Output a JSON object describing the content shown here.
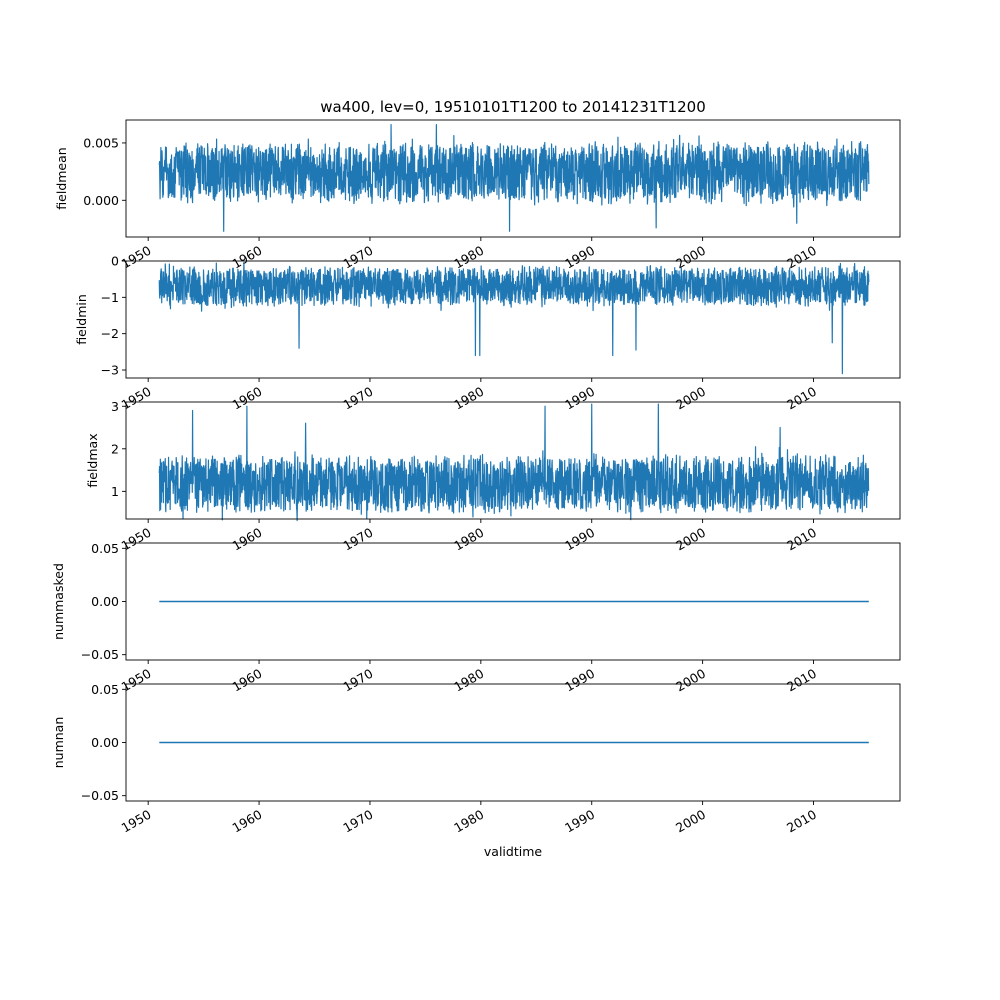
{
  "chart_data": [
    {
      "type": "line",
      "title": "wa400, lev=0, 19510101T1200 to 20141231T1200",
      "xlabel": "",
      "ylabel": "fieldmean",
      "xlim": [
        1948.0,
        2017.8
      ],
      "ylim": [
        -0.0032,
        0.007
      ],
      "x_ticks": [
        1950,
        1960,
        1970,
        1980,
        1990,
        2000,
        2010
      ],
      "x_tick_labels": [
        "1950",
        "1960",
        "1970",
        "1980",
        "1990",
        "2000",
        "2010"
      ],
      "y_ticks": [
        0.0,
        0.005
      ],
      "y_tick_labels": [
        "0.000",
        "0.005"
      ],
      "grid": false,
      "color": "#1f77b4",
      "series": [
        {
          "x_range": [
            1951.0,
            2014.99
          ],
          "typical_low": 0.0,
          "typical_high": 0.0048,
          "extreme_points": [
            {
              "x": 1956.8,
              "y": -0.0027
            },
            {
              "x": 1971.9,
              "y": 0.0066
            },
            {
              "x": 1976.0,
              "y": 0.0066
            },
            {
              "x": 1982.6,
              "y": -0.0027
            },
            {
              "x": 1995.8,
              "y": -0.0024
            },
            {
              "x": 2008.5,
              "y": -0.002
            }
          ]
        }
      ]
    },
    {
      "type": "line",
      "xlabel": "",
      "ylabel": "fieldmin",
      "xlim": [
        1948.0,
        2017.8
      ],
      "ylim": [
        -3.22,
        0.0
      ],
      "x_ticks": [
        1950,
        1960,
        1970,
        1980,
        1990,
        2000,
        2010
      ],
      "x_tick_labels": [
        "1950",
        "1960",
        "1970",
        "1980",
        "1990",
        "2000",
        "2010"
      ],
      "y_ticks": [
        -3,
        -2,
        -1,
        0
      ],
      "y_tick_labels": [
        "−3",
        "−2",
        "−1",
        "0"
      ],
      "grid": false,
      "color": "#1f77b4",
      "series": [
        {
          "x_range": [
            1951.0,
            2014.99
          ],
          "typical_low": -1.2,
          "typical_high": -0.2,
          "extreme_points": [
            {
              "x": 1963.6,
              "y": -2.4
            },
            {
              "x": 1979.5,
              "y": -2.6
            },
            {
              "x": 1979.9,
              "y": -2.6
            },
            {
              "x": 1991.9,
              "y": -2.6
            },
            {
              "x": 1994.0,
              "y": -2.45
            },
            {
              "x": 2011.7,
              "y": -2.25
            },
            {
              "x": 2012.6,
              "y": -3.1
            }
          ]
        }
      ]
    },
    {
      "type": "line",
      "xlabel": "",
      "ylabel": "fieldmax",
      "xlim": [
        1948.0,
        2017.8
      ],
      "ylim": [
        0.35,
        3.1
      ],
      "x_ticks": [
        1950,
        1960,
        1970,
        1980,
        1990,
        2000,
        2010
      ],
      "x_tick_labels": [
        "1950",
        "1960",
        "1970",
        "1980",
        "1990",
        "2000",
        "2010"
      ],
      "y_ticks": [
        1,
        2,
        3
      ],
      "y_tick_labels": [
        "1",
        "2",
        "3"
      ],
      "grid": false,
      "color": "#1f77b4",
      "series": [
        {
          "x_range": [
            1951.0,
            2014.99
          ],
          "typical_low": 0.55,
          "typical_high": 1.8,
          "extreme_points": [
            {
              "x": 1954.0,
              "y": 2.9
            },
            {
              "x": 1958.9,
              "y": 3.0
            },
            {
              "x": 1964.2,
              "y": 2.6
            },
            {
              "x": 1985.8,
              "y": 3.0
            },
            {
              "x": 1990.0,
              "y": 3.05
            },
            {
              "x": 1996.0,
              "y": 3.05
            },
            {
              "x": 2007.0,
              "y": 2.5
            }
          ]
        }
      ]
    },
    {
      "type": "line",
      "xlabel": "",
      "ylabel": "nummasked",
      "xlim": [
        1948.0,
        2017.8
      ],
      "ylim": [
        -0.055,
        0.055
      ],
      "x_ticks": [
        1950,
        1960,
        1970,
        1980,
        1990,
        2000,
        2010
      ],
      "x_tick_labels": [
        "1950",
        "1960",
        "1970",
        "1980",
        "1990",
        "2000",
        "2010"
      ],
      "y_ticks": [
        -0.05,
        0.0,
        0.05
      ],
      "y_tick_labels": [
        "−0.05",
        "0.00",
        "0.05"
      ],
      "grid": false,
      "color": "#1f77b4",
      "series": [
        {
          "x": [
            1951.0,
            2014.99
          ],
          "y": [
            0.0,
            0.0
          ]
        }
      ]
    },
    {
      "type": "line",
      "xlabel": "validtime",
      "ylabel": "numnan",
      "xlim": [
        1948.0,
        2017.8
      ],
      "ylim": [
        -0.055,
        0.055
      ],
      "x_ticks": [
        1950,
        1960,
        1970,
        1980,
        1990,
        2000,
        2010
      ],
      "x_tick_labels": [
        "1950",
        "1960",
        "1970",
        "1980",
        "1990",
        "2000",
        "2010"
      ],
      "y_ticks": [
        -0.05,
        0.0,
        0.05
      ],
      "y_tick_labels": [
        "−0.05",
        "0.00",
        "0.05"
      ],
      "grid": false,
      "color": "#1f77b4",
      "series": [
        {
          "x": [
            1951.0,
            2014.99
          ],
          "y": [
            0.0,
            0.0
          ]
        }
      ]
    }
  ]
}
